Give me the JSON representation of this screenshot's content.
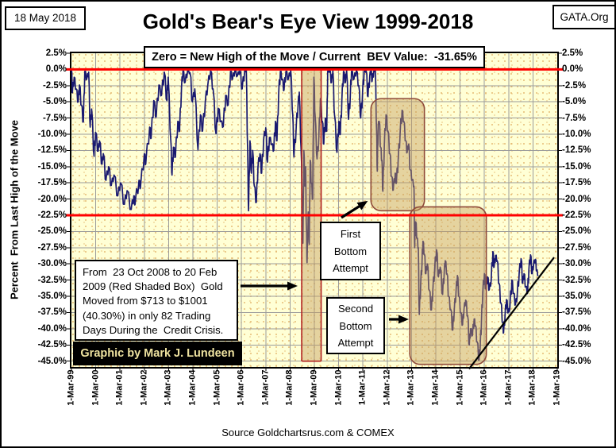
{
  "header": {
    "date_label": "18 May 2018",
    "org_label": "GATA.Org",
    "title": "Gold's Bear's Eye View 1999-2018"
  },
  "subtitle": {
    "text": "Zero = New High of the Move / Current  BEV Value:  -31.65%"
  },
  "y_axis": {
    "title": "Percent  From Last High of the Move",
    "tick_labels": [
      "2.5%",
      "0.0%",
      "-2.5%",
      "-5.0%",
      "-7.5%",
      "-10.0%",
      "-12.5%",
      "-15.0%",
      "-17.5%",
      "-20.0%",
      "-22.5%",
      "-25.0%",
      "-27.5%",
      "-30.0%",
      "-32.5%",
      "-35.0%",
      "-37.5%",
      "-40.0%",
      "-42.5%",
      "-45.0%"
    ],
    "tick_values": [
      2.5,
      0,
      -2.5,
      -5,
      -7.5,
      -10,
      -12.5,
      -15,
      -17.5,
      -20,
      -22.5,
      -25,
      -27.5,
      -30,
      -32.5,
      -35,
      -37.5,
      -40,
      -42.5,
      -45
    ]
  },
  "x_axis": {
    "tick_labels": [
      "1-Mar-99",
      "1-Mar-00",
      "1-Mar-01",
      "1-Mar-02",
      "1-Mar-03",
      "1-Mar-04",
      "1-Mar-05",
      "1-Mar-06",
      "1-Mar-07",
      "1-Mar-08",
      "1-Mar-09",
      "1-Mar-10",
      "1-Mar-11",
      "1-Mar-12",
      "1-Mar-13",
      "1-Mar-14",
      "1-Mar-15",
      "1-Mar-16",
      "1-Mar-17",
      "1-Mar-18",
      "1-Mar-19"
    ]
  },
  "annotations": {
    "credit_crisis_lines": [
      "From  23 Oct 2008 to 20 Feb",
      "2009 (Red Shaded Box)  Gold",
      "Moved from $713 to $1001",
      "(40.30%) in only 82 Trading",
      "Days During the  Credit Crisis."
    ],
    "graphic_by": "Graphic by Mark J. Lundeen",
    "first_bottom_lines": [
      "First",
      "Bottom",
      "Attempt"
    ],
    "second_bottom_lines": [
      "Second",
      "Bottom",
      "Attempt"
    ]
  },
  "footer": {
    "source": "Source Goldchartsrus.com & COMEX"
  },
  "colors": {
    "line": "#191970",
    "red_line": "#FF0000",
    "plot_bg": "#FFFFD5",
    "grid": "#9B9B9B",
    "region_fill": "rgba(197,158,93,0.45)",
    "crisis_border": "#B22222",
    "region_border": "#8F4A3A",
    "credit_text": "#EFE3A0",
    "trendline": "#000000"
  },
  "chart_data": {
    "type": "line",
    "title": "Gold's Bear's Eye View 1999-2018",
    "ylabel": "Percent From Last High of the Move",
    "x_domain_years": [
      1999.17,
      2019.17
    ],
    "y_domain_pct": [
      2.5,
      -45.9
    ],
    "reference_lines_pct": [
      0,
      -22.5
    ],
    "regions": [
      {
        "name": "credit-crisis-box",
        "x": [
          2008.65,
          2009.45
        ],
        "y": [
          0,
          -45.0
        ],
        "rounded": false
      },
      {
        "name": "first-bottom-attempt-region",
        "x": [
          2011.5,
          2013.7
        ],
        "y": [
          -4.5,
          -21.8
        ],
        "rounded": true
      },
      {
        "name": "second-bottom-attempt-region",
        "x": [
          2013.1,
          2016.25
        ],
        "y": [
          -21.2,
          -45.5
        ],
        "rounded": true
      }
    ],
    "trendline": {
      "x": [
        2015.54,
        2019.04
      ],
      "y": [
        -46.2,
        -29.0
      ]
    },
    "series": [
      {
        "name": "Gold BEV (%)",
        "points": [
          [
            1999.17,
            -0.1
          ],
          [
            1999.21,
            -3.6
          ],
          [
            1999.28,
            -1.2
          ],
          [
            1999.36,
            -3.0
          ],
          [
            1999.45,
            -5.0
          ],
          [
            1999.5,
            -2.4
          ],
          [
            1999.58,
            -5.5
          ],
          [
            1999.66,
            -8.1
          ],
          [
            1999.72,
            -0.3
          ],
          [
            1999.8,
            -1.5
          ],
          [
            1999.88,
            -0.4
          ],
          [
            1999.94,
            -8.9
          ],
          [
            2000.0,
            -6.1
          ],
          [
            2000.1,
            -13.4
          ],
          [
            2000.16,
            -9.7
          ],
          [
            2000.27,
            -12.6
          ],
          [
            2000.32,
            -11.0
          ],
          [
            2000.43,
            -14.6
          ],
          [
            2000.48,
            -13.0
          ],
          [
            2000.59,
            -17.1
          ],
          [
            2000.7,
            -15.0
          ],
          [
            2000.81,
            -17.9
          ],
          [
            2000.92,
            -16.3
          ],
          [
            2001.08,
            -19.5
          ],
          [
            2001.19,
            -17.5
          ],
          [
            2001.35,
            -20.8
          ],
          [
            2001.46,
            -18.7
          ],
          [
            2001.63,
            -21.6
          ],
          [
            2001.74,
            -19.5
          ],
          [
            2001.79,
            -20.8
          ],
          [
            2001.95,
            -17.1
          ],
          [
            2002.01,
            -18.3
          ],
          [
            2002.17,
            -13.0
          ],
          [
            2002.23,
            -14.6
          ],
          [
            2002.39,
            -8.9
          ],
          [
            2002.45,
            -10.6
          ],
          [
            2002.56,
            -4.8
          ],
          [
            2002.66,
            -7.3
          ],
          [
            2002.77,
            -2.4
          ],
          [
            2002.88,
            -4.0
          ],
          [
            2002.99,
            -0.4
          ],
          [
            2003.1,
            -4.8
          ],
          [
            2003.15,
            -1.2
          ],
          [
            2003.26,
            -11.0
          ],
          [
            2003.31,
            -16.3
          ],
          [
            2003.37,
            -12.0
          ],
          [
            2003.45,
            -13.5
          ],
          [
            2003.55,
            -8.0
          ],
          [
            2003.62,
            -9.5
          ],
          [
            2003.7,
            -3.0
          ],
          [
            2003.76,
            -0.2
          ],
          [
            2003.85,
            -2.0
          ],
          [
            2003.95,
            -0.2
          ],
          [
            2004.05,
            -0.5
          ],
          [
            2004.15,
            -5.0
          ],
          [
            2004.25,
            -3.0
          ],
          [
            2004.38,
            -12.4
          ],
          [
            2004.48,
            -7.0
          ],
          [
            2004.57,
            -9.5
          ],
          [
            2004.68,
            -5.0
          ],
          [
            2004.78,
            -2.5
          ],
          [
            2004.9,
            -0.2
          ],
          [
            2005.0,
            -3.0
          ],
          [
            2005.12,
            -9.9
          ],
          [
            2005.22,
            -6.0
          ],
          [
            2005.32,
            -8.0
          ],
          [
            2005.42,
            -8.8
          ],
          [
            2005.52,
            -4.0
          ],
          [
            2005.62,
            -5.5
          ],
          [
            2005.72,
            -0.3
          ],
          [
            2005.8,
            -1.5
          ],
          [
            2005.9,
            -0.2
          ],
          [
            2006.0,
            -1.0
          ],
          [
            2006.1,
            -0.2
          ],
          [
            2006.2,
            -3.0
          ],
          [
            2006.3,
            -0.2
          ],
          [
            2006.37,
            -0.2
          ],
          [
            2006.42,
            -12.0
          ],
          [
            2006.46,
            -21.8
          ],
          [
            2006.52,
            -11.0
          ],
          [
            2006.58,
            -16.0
          ],
          [
            2006.63,
            -12.5
          ],
          [
            2006.7,
            -18.0
          ],
          [
            2006.78,
            -20.5
          ],
          [
            2006.85,
            -15.0
          ],
          [
            2006.93,
            -13.0
          ],
          [
            2007.0,
            -16.0
          ],
          [
            2007.08,
            -11.0
          ],
          [
            2007.17,
            -9.0
          ],
          [
            2007.24,
            -14.3
          ],
          [
            2007.32,
            -10.5
          ],
          [
            2007.42,
            -11.5
          ],
          [
            2007.5,
            -12.5
          ],
          [
            2007.57,
            -8.0
          ],
          [
            2007.63,
            -11.0
          ],
          [
            2007.7,
            -4.0
          ],
          [
            2007.77,
            -0.3
          ],
          [
            2007.85,
            -1.5
          ],
          [
            2007.92,
            -3.2
          ],
          [
            2008.0,
            -0.3
          ],
          [
            2008.1,
            -1.5
          ],
          [
            2008.2,
            -0.2
          ],
          [
            2008.28,
            -7.0
          ],
          [
            2008.33,
            -13.5
          ],
          [
            2008.42,
            -9.0
          ],
          [
            2008.5,
            -5.5
          ],
          [
            2008.55,
            -3.5
          ],
          [
            2008.62,
            -12.0
          ],
          [
            2008.68,
            -21.0
          ],
          [
            2008.7,
            -26.8
          ],
          [
            2008.74,
            -12.5
          ],
          [
            2008.78,
            -18.0
          ],
          [
            2008.81,
            -15.0
          ],
          [
            2008.84,
            -24.0
          ],
          [
            2008.87,
            -29.8
          ],
          [
            2008.92,
            -22.0
          ],
          [
            2008.96,
            -27.0
          ],
          [
            2009.0,
            -14.0
          ],
          [
            2009.05,
            -17.5
          ],
          [
            2009.1,
            -20.0
          ],
          [
            2009.15,
            -1.2
          ],
          [
            2009.2,
            -7.0
          ],
          [
            2009.28,
            -13.8
          ],
          [
            2009.35,
            -11.0
          ],
          [
            2009.42,
            -4.5
          ],
          [
            2009.5,
            -8.0
          ],
          [
            2009.56,
            -11.5
          ],
          [
            2009.62,
            -7.5
          ],
          [
            2009.68,
            -9.5
          ],
          [
            2009.72,
            -0.3
          ],
          [
            2009.8,
            -0.2
          ],
          [
            2009.88,
            -2.0
          ],
          [
            2009.93,
            -0.2
          ],
          [
            2010.0,
            -7.0
          ],
          [
            2010.1,
            -12.8
          ],
          [
            2010.18,
            -8.0
          ],
          [
            2010.24,
            -10.0
          ],
          [
            2010.3,
            -5.0
          ],
          [
            2010.37,
            -0.3
          ],
          [
            2010.45,
            -2.0
          ],
          [
            2010.5,
            -0.2
          ],
          [
            2010.58,
            -7.7
          ],
          [
            2010.65,
            -4.0
          ],
          [
            2010.7,
            -0.3
          ],
          [
            2010.8,
            -1.5
          ],
          [
            2010.9,
            -0.2
          ],
          [
            2011.0,
            -2.5
          ],
          [
            2011.08,
            -7.5
          ],
          [
            2011.15,
            -4.0
          ],
          [
            2011.22,
            -0.3
          ],
          [
            2011.3,
            -0.2
          ],
          [
            2011.38,
            -4.2
          ],
          [
            2011.45,
            -1.0
          ],
          [
            2011.5,
            -0.2
          ],
          [
            2011.55,
            -1.8
          ],
          [
            2011.62,
            -0.2
          ],
          [
            2011.68,
            -0.1
          ],
          [
            2011.73,
            -9.0
          ],
          [
            2011.76,
            -15.7
          ],
          [
            2011.8,
            -8.5
          ],
          [
            2011.84,
            -8.0
          ],
          [
            2011.9,
            -12.0
          ],
          [
            2011.95,
            -14.0
          ],
          [
            2011.99,
            -18.8
          ],
          [
            2012.05,
            -12.0
          ],
          [
            2012.12,
            -7.0
          ],
          [
            2012.2,
            -9.5
          ],
          [
            2012.28,
            -13.0
          ],
          [
            2012.35,
            -16.5
          ],
          [
            2012.42,
            -18.6
          ],
          [
            2012.5,
            -16.0
          ],
          [
            2012.55,
            -17.5
          ],
          [
            2012.62,
            -14.0
          ],
          [
            2012.7,
            -10.0
          ],
          [
            2012.78,
            -6.3
          ],
          [
            2012.85,
            -8.0
          ],
          [
            2012.93,
            -11.0
          ],
          [
            2012.99,
            -12.8
          ],
          [
            2013.05,
            -11.5
          ],
          [
            2013.12,
            -15.5
          ],
          [
            2013.2,
            -17.0
          ],
          [
            2013.27,
            -18.0
          ],
          [
            2013.3,
            -27.5
          ],
          [
            2013.34,
            -23.5
          ],
          [
            2013.4,
            -26.0
          ],
          [
            2013.45,
            -27.5
          ],
          [
            2013.49,
            -37.8
          ],
          [
            2013.55,
            -33.0
          ],
          [
            2013.6,
            -30.0
          ],
          [
            2013.64,
            -26.5
          ],
          [
            2013.7,
            -28.5
          ],
          [
            2013.76,
            -31.5
          ],
          [
            2013.82,
            -30.0
          ],
          [
            2013.9,
            -34.0
          ],
          [
            2013.99,
            -37.1
          ],
          [
            2014.05,
            -34.0
          ],
          [
            2014.12,
            -31.0
          ],
          [
            2014.2,
            -27.8
          ],
          [
            2014.28,
            -32.0
          ],
          [
            2014.35,
            -30.5
          ],
          [
            2014.45,
            -34.7
          ],
          [
            2014.52,
            -31.0
          ],
          [
            2014.56,
            -29.5
          ],
          [
            2014.63,
            -31.5
          ],
          [
            2014.7,
            -35.0
          ],
          [
            2014.78,
            -37.0
          ],
          [
            2014.87,
            -40.2
          ],
          [
            2014.93,
            -37.0
          ],
          [
            2015.0,
            -34.5
          ],
          [
            2015.06,
            -31.8
          ],
          [
            2015.12,
            -35.0
          ],
          [
            2015.2,
            -37.5
          ],
          [
            2015.27,
            -39.4
          ],
          [
            2015.33,
            -37.0
          ],
          [
            2015.4,
            -35.6
          ],
          [
            2015.48,
            -38.0
          ],
          [
            2015.55,
            -42.5
          ],
          [
            2015.6,
            -40.0
          ],
          [
            2015.68,
            -41.0
          ],
          [
            2015.75,
            -38.5
          ],
          [
            2015.8,
            -39.5
          ],
          [
            2015.87,
            -42.0
          ],
          [
            2015.95,
            -44.8
          ],
          [
            2016.0,
            -42.5
          ],
          [
            2016.05,
            -39.0
          ],
          [
            2016.1,
            -34.5
          ],
          [
            2016.17,
            -31.5
          ],
          [
            2016.23,
            -33.8
          ],
          [
            2016.3,
            -32.0
          ],
          [
            2016.37,
            -34.0
          ],
          [
            2016.45,
            -32.5
          ],
          [
            2016.52,
            -28.1
          ],
          [
            2016.57,
            -30.5
          ],
          [
            2016.63,
            -28.7
          ],
          [
            2016.7,
            -29.5
          ],
          [
            2016.77,
            -33.0
          ],
          [
            2016.85,
            -36.0
          ],
          [
            2016.92,
            -39.0
          ],
          [
            2016.96,
            -40.6
          ],
          [
            2017.02,
            -38.0
          ],
          [
            2017.08,
            -35.5
          ],
          [
            2017.15,
            -37.5
          ],
          [
            2017.22,
            -36.8
          ],
          [
            2017.3,
            -32.5
          ],
          [
            2017.37,
            -34.5
          ],
          [
            2017.45,
            -36.3
          ],
          [
            2017.52,
            -35.0
          ],
          [
            2017.6,
            -31.5
          ],
          [
            2017.68,
            -29.2
          ],
          [
            2017.75,
            -33.0
          ],
          [
            2017.8,
            -31.5
          ],
          [
            2017.87,
            -33.5
          ],
          [
            2017.95,
            -34.5
          ],
          [
            2018.0,
            -31.0
          ],
          [
            2018.07,
            -28.6
          ],
          [
            2018.13,
            -31.5
          ],
          [
            2018.2,
            -30.0
          ],
          [
            2018.27,
            -29.3
          ],
          [
            2018.32,
            -31.0
          ],
          [
            2018.38,
            -31.65
          ]
        ]
      }
    ]
  }
}
